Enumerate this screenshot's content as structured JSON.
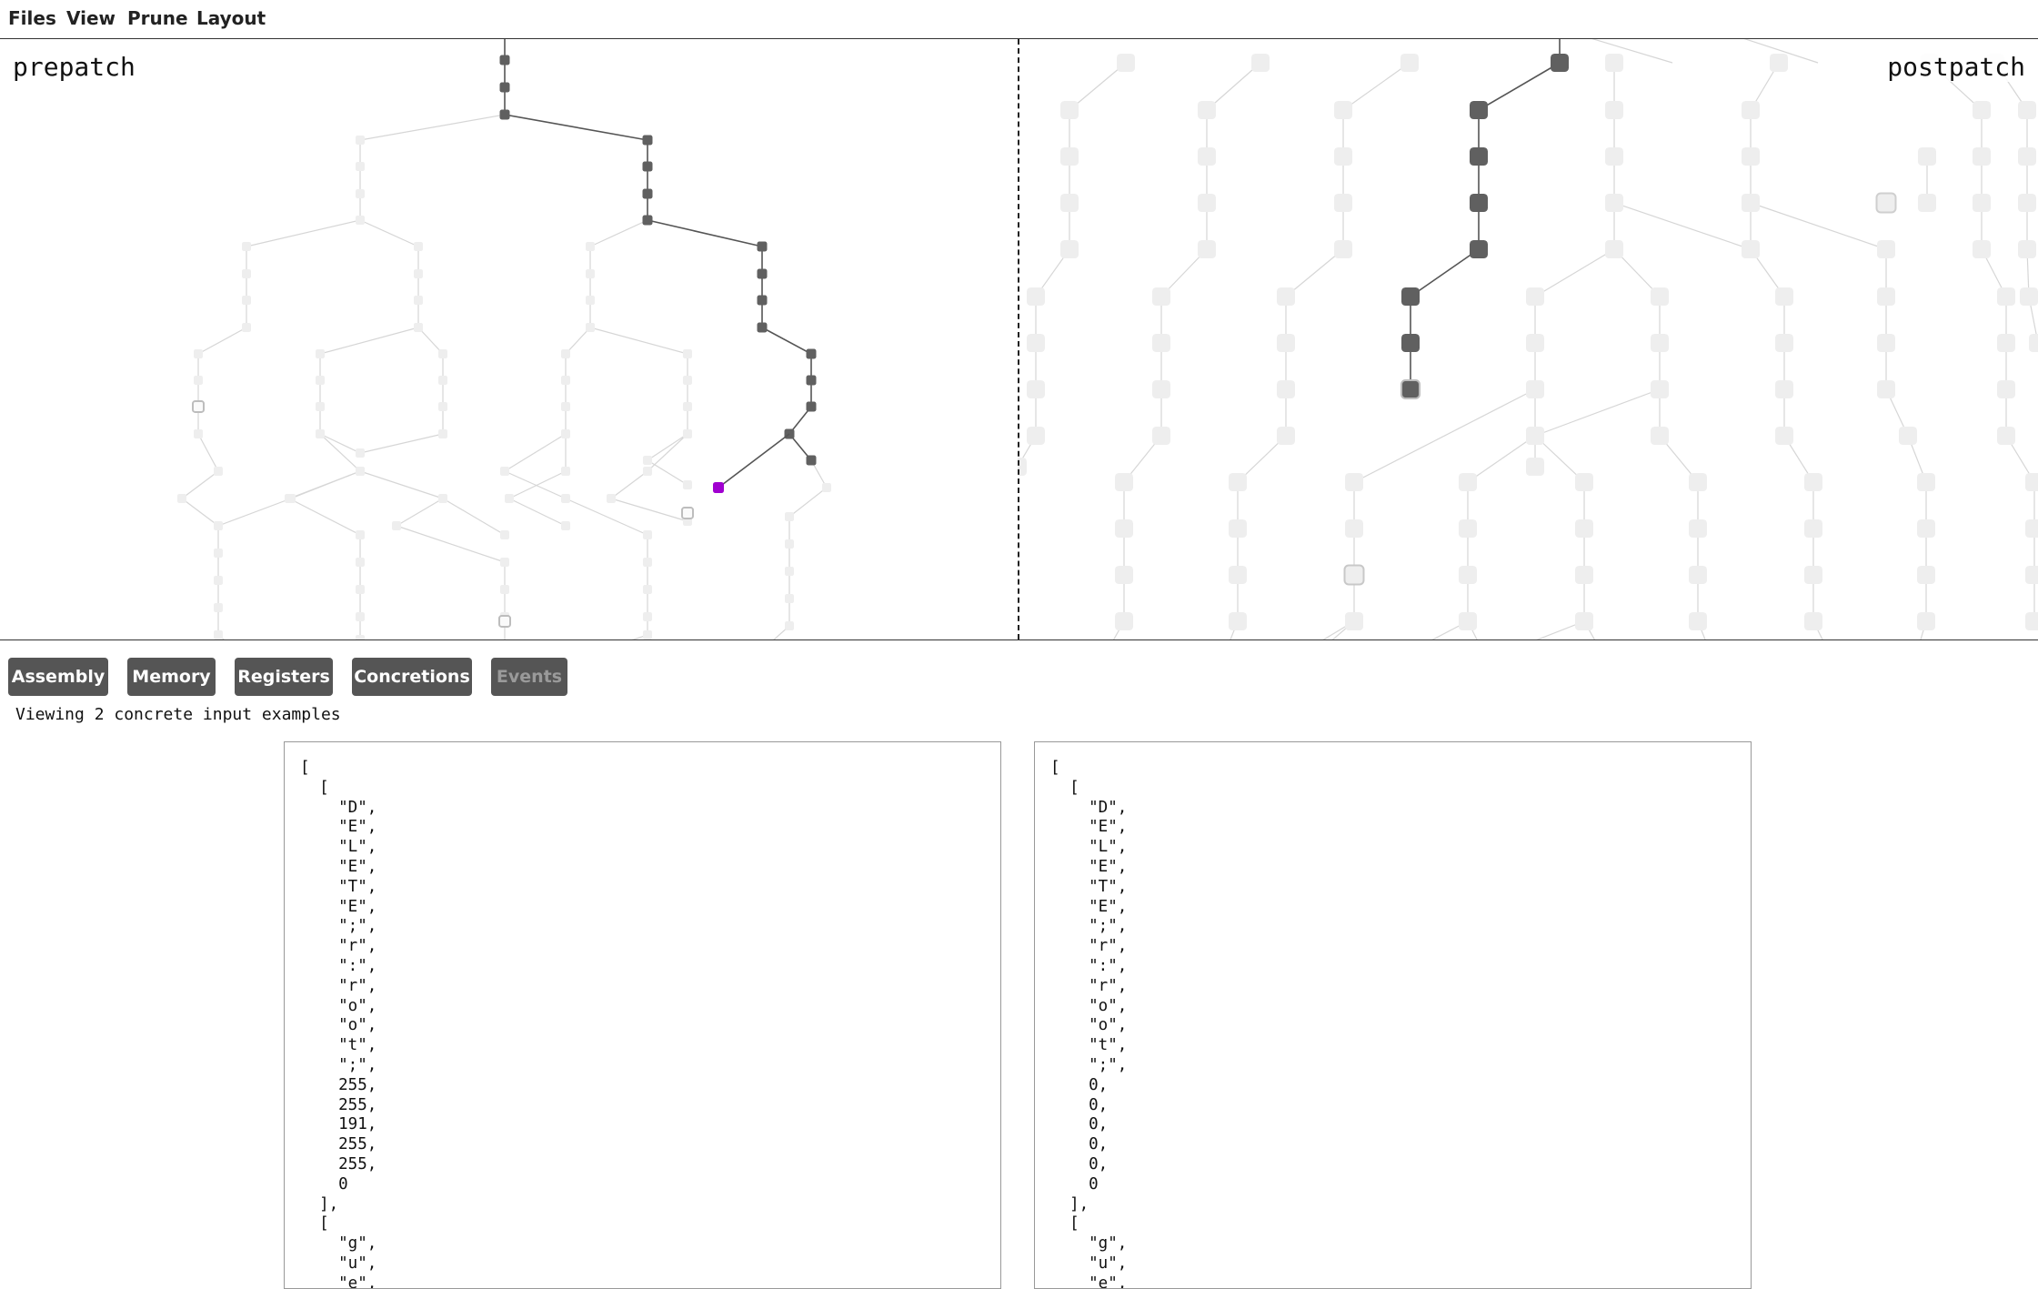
{
  "menubar": {
    "items": [
      {
        "label": "Files"
      },
      {
        "label": "View"
      },
      {
        "label": "Prune"
      },
      {
        "label": "Layout"
      }
    ]
  },
  "graphs": {
    "left_label": "prepatch",
    "right_label": "postpatch",
    "colors": {
      "active_node": "#606060",
      "inactive_node": "#eeeeee",
      "inactive_edge": "#d6d6d6",
      "active_edge": "#555555",
      "highlight_node": "#a000d0"
    }
  },
  "tabs": [
    {
      "label": "Assembly",
      "enabled": true
    },
    {
      "label": "Memory",
      "enabled": true
    },
    {
      "label": "Registers",
      "enabled": true
    },
    {
      "label": "Concretions",
      "enabled": true
    },
    {
      "label": "Events",
      "enabled": false
    }
  ],
  "status_text": "Viewing 2 concrete input examples",
  "panels": {
    "left": "[\n  [\n    \"D\",\n    \"E\",\n    \"L\",\n    \"E\",\n    \"T\",\n    \"E\",\n    \";\",\n    \"r\",\n    \":\",\n    \"r\",\n    \"o\",\n    \"o\",\n    \"t\",\n    \";\",\n    255,\n    255,\n    191,\n    255,\n    255,\n    0\n  ],\n  [\n    \"g\",\n    \"u\",\n    \"e\",",
    "right": "[\n  [\n    \"D\",\n    \"E\",\n    \"L\",\n    \"E\",\n    \"T\",\n    \"E\",\n    \";\",\n    \"r\",\n    \":\",\n    \"r\",\n    \"o\",\n    \"o\",\n    \"t\",\n    \";\",\n    0,\n    0,\n    0,\n    0,\n    0,\n    0\n  ],\n  [\n    \"g\",\n    \"u\",\n    \"e\","
  }
}
